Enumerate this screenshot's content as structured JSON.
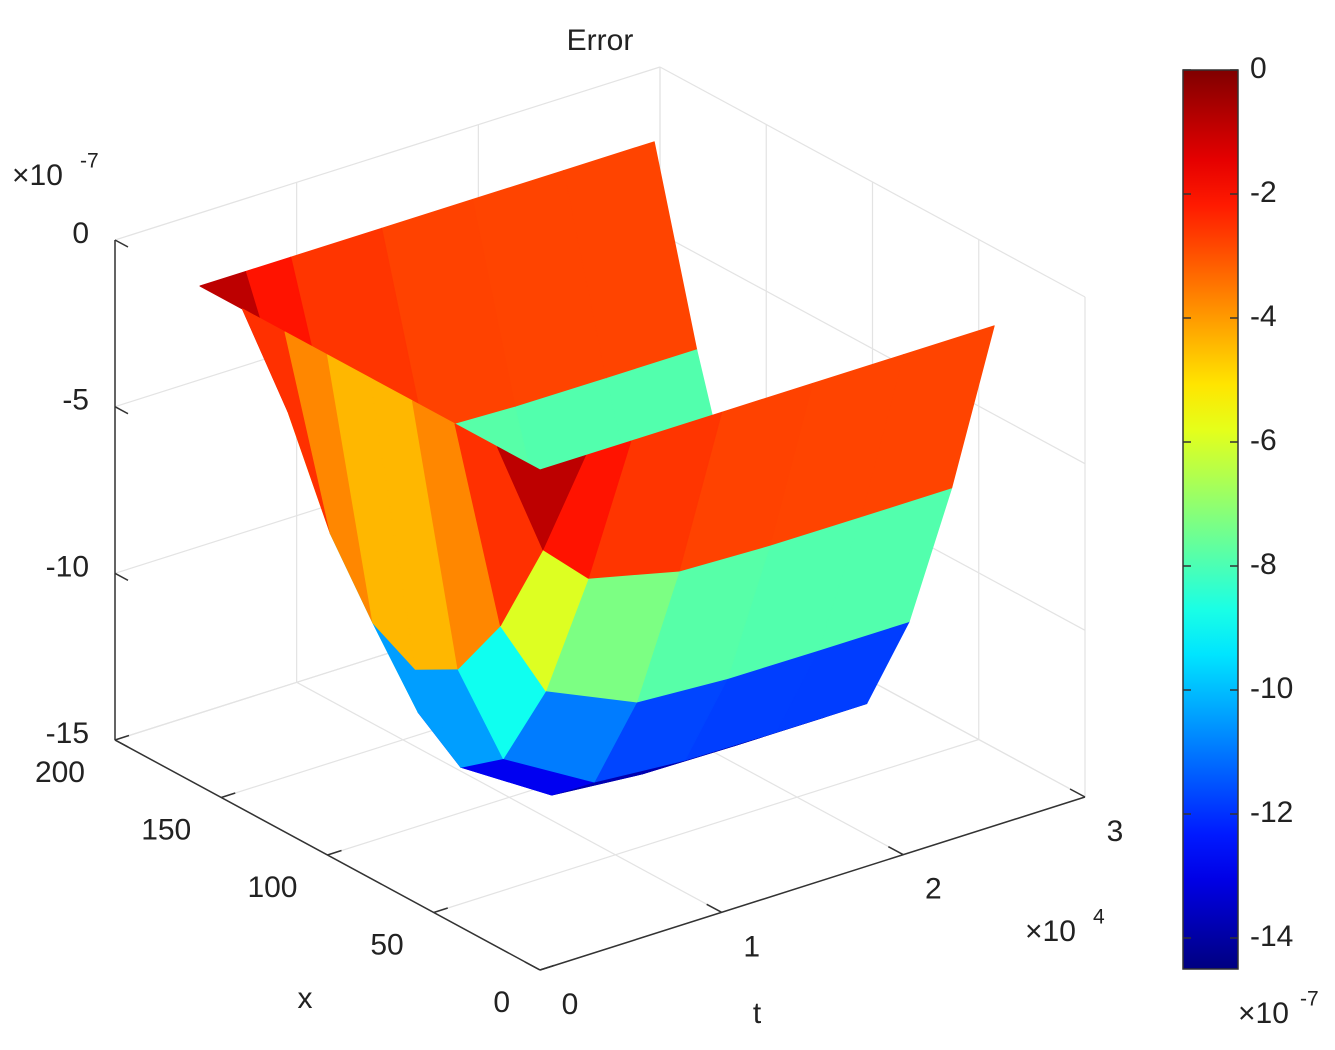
{
  "chart_data": {
    "type": "surface",
    "title": "Error",
    "xlabel": "x",
    "tlabel": "t",
    "x": [
      0,
      20,
      40,
      60,
      80,
      100,
      120,
      140,
      160
    ],
    "t": [
      0,
      0.25,
      0.5,
      1,
      1.5,
      2,
      2.5
    ],
    "z": [
      [
        0,
        0,
        0,
        0,
        0,
        0,
        0,
        0,
        0
      ],
      [
        0,
        -3.51,
        -6.48,
        -8.47,
        -9.17,
        -8.47,
        -6.48,
        -3.51,
        0
      ],
      [
        0,
        -4.8,
        -8.87,
        -11.59,
        -12.54,
        -11.59,
        -8.87,
        -4.8,
        0
      ],
      [
        0,
        -5.45,
        -10.07,
        -13.16,
        -14.24,
        -13.16,
        -10.07,
        -5.45,
        0
      ],
      [
        0,
        -5.54,
        -10.23,
        -13.37,
        -14.47,
        -13.37,
        -10.23,
        -5.54,
        0
      ],
      [
        0,
        -5.55,
        -10.25,
        -13.4,
        -14.5,
        -13.4,
        -10.25,
        -5.55,
        0
      ],
      [
        0,
        -5.55,
        -10.25,
        -13.4,
        -14.5,
        -13.4,
        -10.25,
        -5.55,
        0
      ]
    ],
    "xlim": [
      0,
      200
    ],
    "xticks": [
      0,
      50,
      100,
      150,
      200
    ],
    "tlim": [
      0,
      3
    ],
    "tticks": [
      0,
      1,
      2,
      3
    ],
    "t_exponent": {
      "base": "×10",
      "power": "4"
    },
    "zlim": [
      -15,
      0
    ],
    "zticks": [
      0,
      -5,
      -10,
      -15
    ],
    "z_exponent": {
      "base": "×10",
      "power": "-7"
    },
    "colormap": "jet",
    "clim": [
      -14.5,
      0
    ],
    "colorbar_ticks": [
      0,
      -2,
      -4,
      -6,
      -8,
      -10,
      -12,
      -14
    ],
    "colorbar_exponent": {
      "base": "×10",
      "power": "-7"
    },
    "grid": true
  }
}
